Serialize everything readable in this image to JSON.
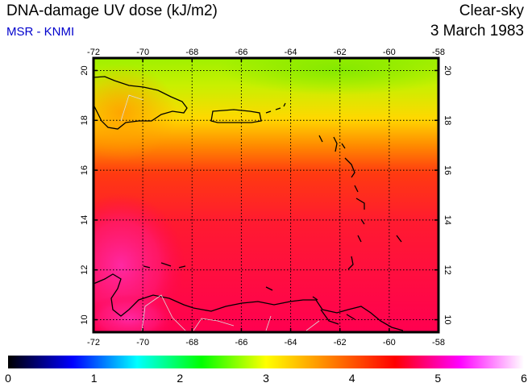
{
  "header": {
    "title": "DNA-damage UV dose (kJ/m2)",
    "subtitle": "MSR - KNMI",
    "subtitle_color": "#0000cc",
    "condition": "Clear-sky",
    "date": "3 March 1983"
  },
  "map": {
    "lon_ticks": [
      "-72",
      "-70",
      "-68",
      "-66",
      "-64",
      "-62",
      "-60",
      "-58"
    ],
    "lat_ticks": [
      "10",
      "12",
      "14",
      "16",
      "18",
      "20"
    ],
    "lon_range": [
      -72,
      -58
    ],
    "lat_range": [
      9.5,
      20.5
    ],
    "grid": true
  },
  "colorbar": {
    "labels": [
      "0",
      "1",
      "2",
      "3",
      "4",
      "5",
      "6"
    ],
    "range": [
      0,
      6
    ],
    "colors": [
      "#000000",
      "#0000ff",
      "#00ffff",
      "#00ff00",
      "#ffff00",
      "#ff8000",
      "#ff0000",
      "#ff00ff",
      "#ffffff"
    ]
  }
}
